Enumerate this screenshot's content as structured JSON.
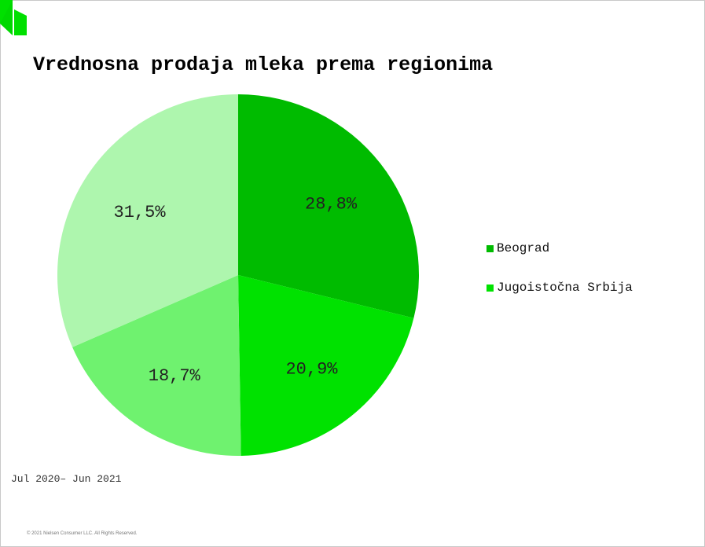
{
  "brand": {
    "logo_icon": "nielsen-logo-icon",
    "logo_color": "#00e000"
  },
  "chart_data": {
    "type": "pie",
    "title": "Vrednosna prodaja mleka prema regionima",
    "slices": [
      {
        "name": "Beograd",
        "value": 28.8,
        "label": "28,8%",
        "color": "#00bb00"
      },
      {
        "name": "Jugoistočna Srbija",
        "value": 20.9,
        "label": "20,9%",
        "color": "#00e200"
      },
      {
        "name": "",
        "value": 18.7,
        "label": "18,7%",
        "color": "#6ff26f"
      },
      {
        "name": "",
        "value": 31.5,
        "label": "31,5%",
        "color": "#aef6ae"
      }
    ],
    "legend_position": "right",
    "start_angle": "12 o'clock",
    "direction": "clockwise"
  },
  "legend": [
    {
      "label": "Beograd",
      "color": "#00bb00"
    },
    {
      "label": "Jugoistočna Srbija",
      "color": "#00e200"
    }
  ],
  "period": "Jul 2020– Jun 2021",
  "copyright": "© 2021 Nielsen Consumer LLC. All Rights Reserved."
}
